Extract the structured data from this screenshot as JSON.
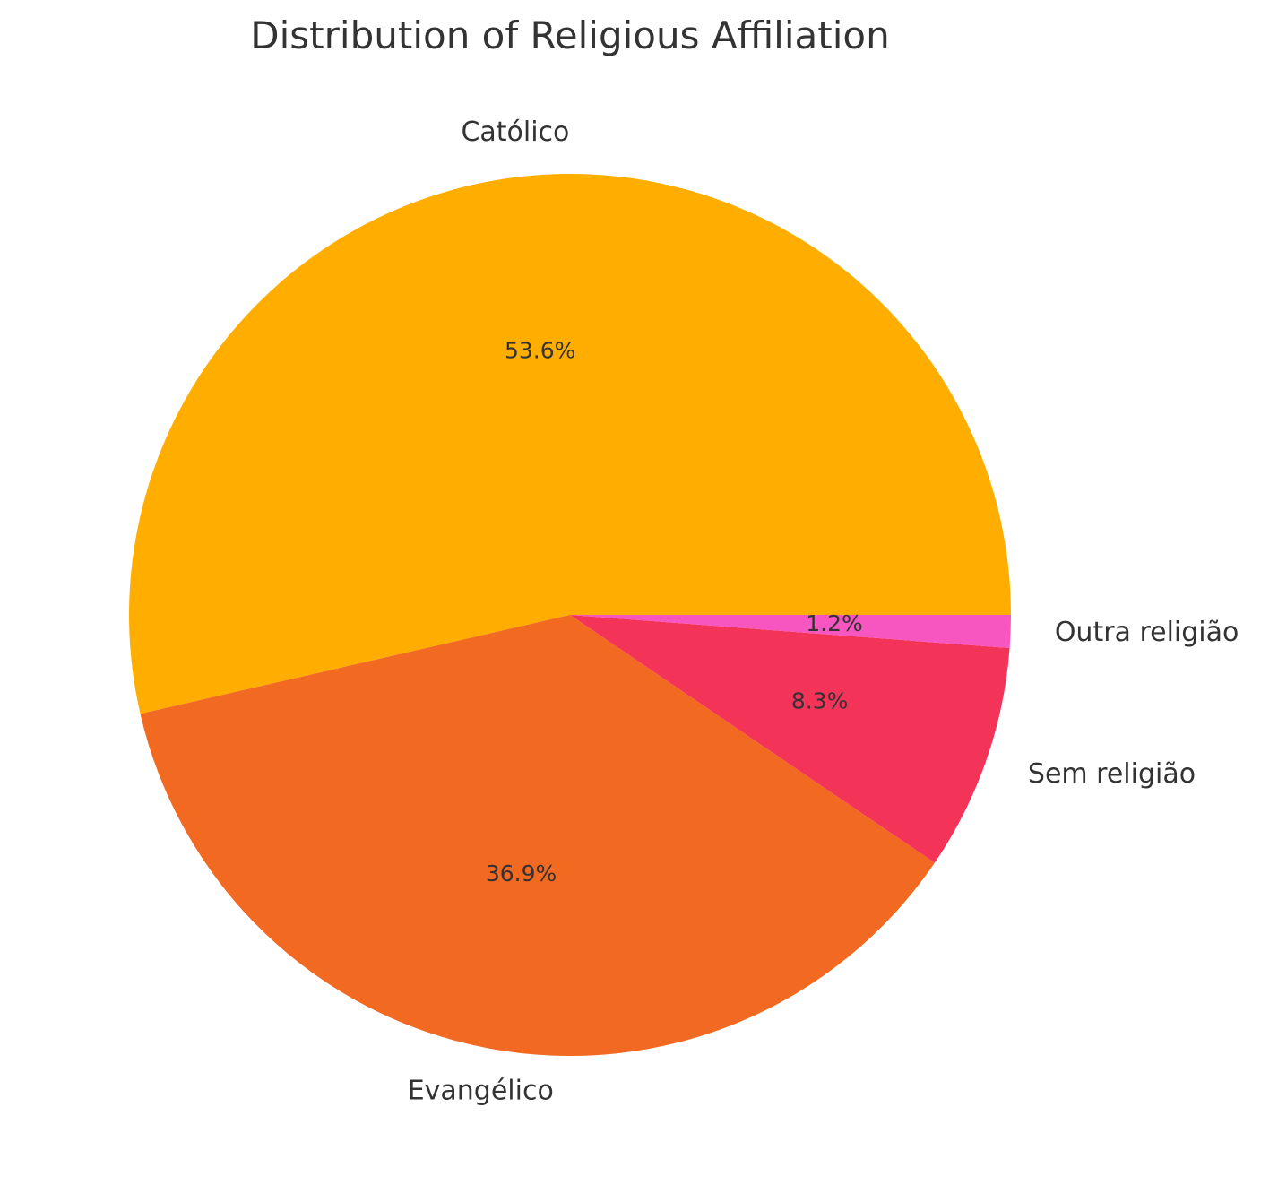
{
  "chart_data": {
    "type": "pie",
    "title": "Distribution of Religious Affiliation",
    "categories": [
      "Católico",
      "Evangélico",
      "Sem religião",
      "Outra religião"
    ],
    "values": [
      53.6,
      36.9,
      8.3,
      1.2
    ],
    "value_labels": [
      "53.6%",
      "36.9%",
      "8.3%",
      "1.2%"
    ],
    "colors": [
      "#FFAE00",
      "#F26922",
      "#F43358",
      "#F756C0"
    ],
    "start_angle_deg": 0,
    "direction": "counterclockwise",
    "legend": "none"
  }
}
